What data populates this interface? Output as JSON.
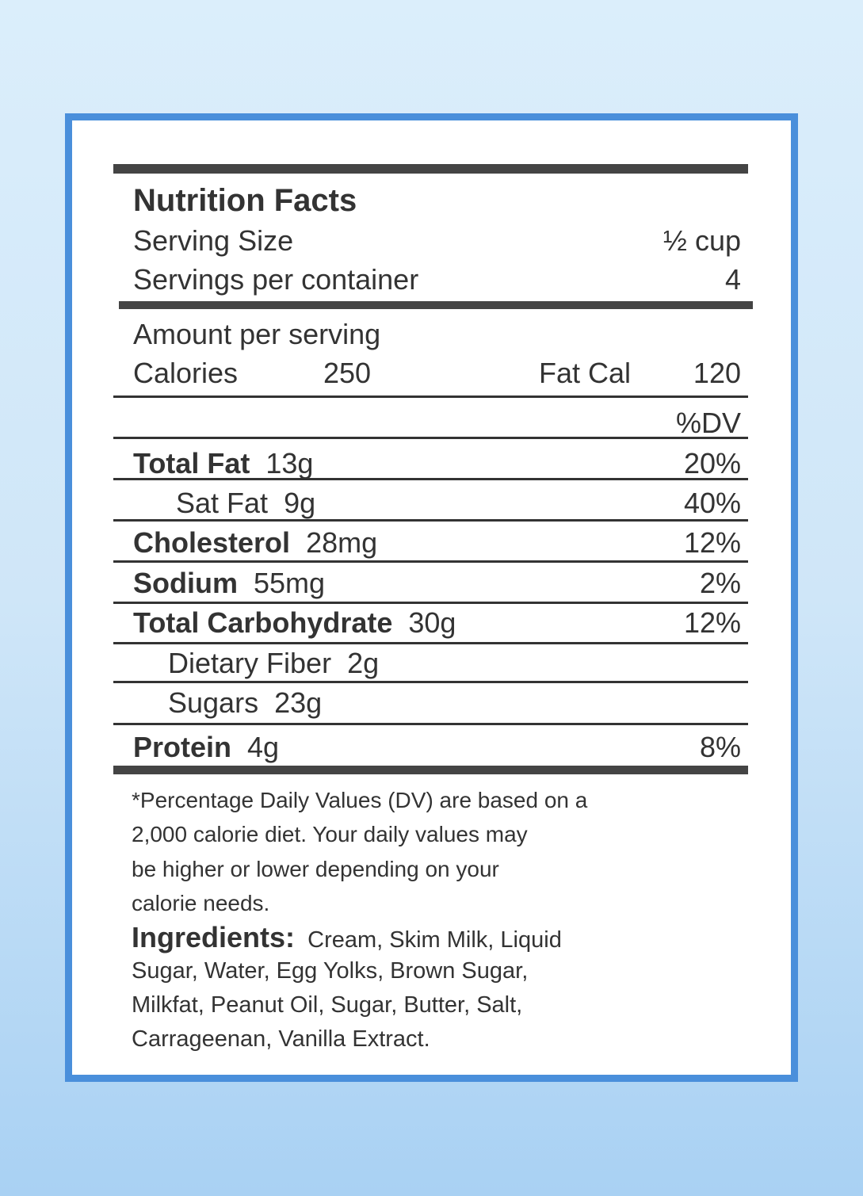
{
  "label": {
    "title": "Nutrition Facts",
    "serving_size_label": "Serving Size",
    "serving_size_value": "½ cup",
    "servings_label": "Servings per container",
    "servings_value": "4",
    "amount_label": "Amount per serving",
    "calories_label": "Calories",
    "calories_value": "250",
    "fat_cal_label": "Fat Cal",
    "fat_cal_value": "120",
    "dv_header": "%DV",
    "nutrients": [
      {
        "name": "Total Fat",
        "amount": "13g",
        "dv": "20%"
      },
      {
        "name": "Sat Fat",
        "amount": "9g",
        "dv": "40%"
      },
      {
        "name": "Cholesterol",
        "amount": "28mg",
        "dv": "12%"
      },
      {
        "name": "Sodium",
        "amount": "55mg",
        "dv": "2%"
      },
      {
        "name": "Total Carbohydrate",
        "amount": "30g",
        "dv": "12%"
      },
      {
        "name": "Dietary Fiber",
        "amount": "2g",
        "dv": ""
      },
      {
        "name": "Sugars",
        "amount": "23g",
        "dv": ""
      },
      {
        "name": "Protein",
        "amount": "4g",
        "dv": "8%"
      }
    ],
    "footnote_lines": [
      "*Percentage Daily Values (DV) are based on a",
      "2,000 calorie diet.  Your daily values may",
      "be higher or lower depending on your",
      "calorie needs."
    ],
    "ingredients_label": "Ingredients:",
    "ingredients_lines": [
      "Cream, Skim Milk, Liquid",
      "Sugar, Water, Egg Yolks, Brown Sugar,",
      "Milkfat, Peanut Oil, Sugar, Butter, Salt,",
      "Carrageenan, Vanilla Extract."
    ]
  },
  "colors": {
    "border": "#4a8fdb",
    "background_top": "#dbeefb",
    "background_bottom": "#a9d1f3",
    "text": "#333333"
  }
}
